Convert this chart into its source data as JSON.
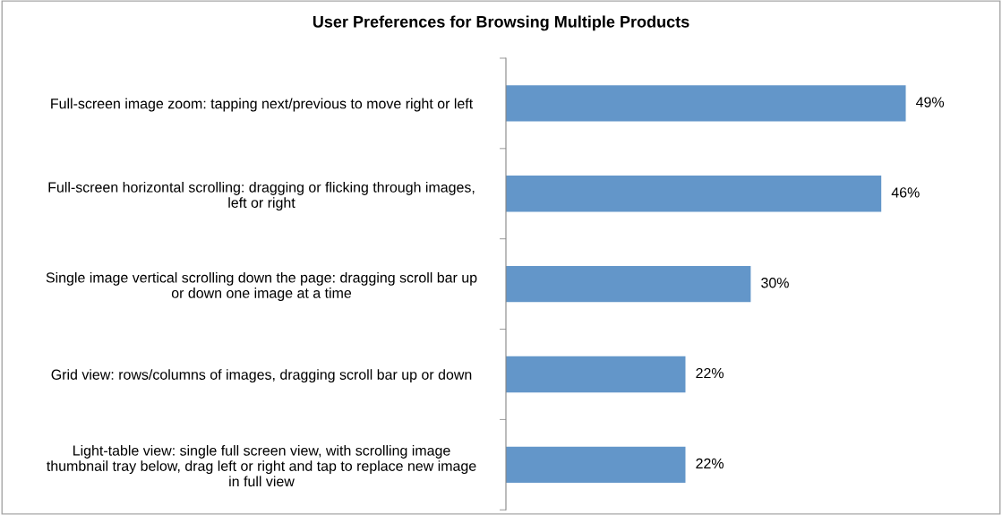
{
  "chart_data": {
    "type": "bar",
    "orientation": "horizontal",
    "title": "User Preferences for Browsing Multiple Products",
    "categories": [
      "Full-screen image zoom: tapping next/previous to move right or left",
      "Full-screen horizontal scrolling: dragging or flicking through images,\nleft or right",
      "Single image vertical scrolling down the page: dragging scroll bar up\nor down one image at a time",
      "Grid view: rows/columns of images, dragging scroll bar up or down",
      "Light-table view: single full screen view, with scrolling image\nthumbnail tray below, drag left or right and tap to replace new image\nin full view"
    ],
    "values": [
      49,
      46,
      30,
      22,
      22
    ],
    "value_labels": [
      "49%",
      "46%",
      "30%",
      "22%",
      "22%"
    ],
    "color": "#6396c9",
    "grid": false,
    "legend": false
  }
}
